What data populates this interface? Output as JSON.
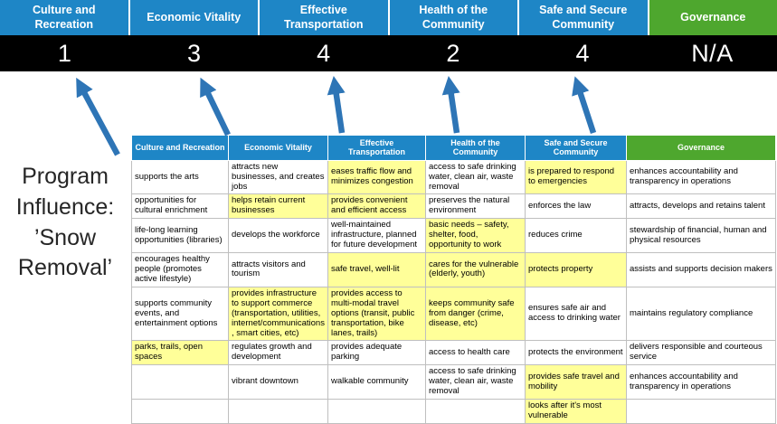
{
  "title": "Program Influence: ’Snow Removal’",
  "colors": {
    "pillar_blue": "#1e86c6",
    "governance_green": "#4ea72e",
    "highlight_yellow": "#ffff99",
    "score_bar_bg": "#000000",
    "arrow_blue": "#2e75b6",
    "grid_border": "#bfbfbf"
  },
  "pillars": [
    {
      "label": "Culture and Recreation",
      "score": "1",
      "theme": "blue"
    },
    {
      "label": "Economic Vitality",
      "score": "3",
      "theme": "blue"
    },
    {
      "label": "Effective Transportation",
      "score": "4",
      "theme": "blue"
    },
    {
      "label": "Health of the Community",
      "score": "2",
      "theme": "blue"
    },
    {
      "label": "Safe and Secure Community",
      "score": "4",
      "theme": "blue"
    },
    {
      "label": "Governance",
      "score": "N/A",
      "theme": "green"
    }
  ],
  "matrix": {
    "headers": [
      {
        "label": "Culture and Recreation",
        "theme": "blue"
      },
      {
        "label": "Economic Vitality",
        "theme": "blue"
      },
      {
        "label": "Effective Transportation",
        "theme": "blue"
      },
      {
        "label": "Health of the Community",
        "theme": "blue"
      },
      {
        "label": "Safe and Secure Community",
        "theme": "blue"
      },
      {
        "label": "Governance",
        "theme": "green"
      }
    ],
    "rows": [
      [
        {
          "text": "supports the arts",
          "highlight": false
        },
        {
          "text": "attracts new businesses, and creates jobs",
          "highlight": false
        },
        {
          "text": "eases traffic flow and minimizes congestion",
          "highlight": true
        },
        {
          "text": "access to safe drinking water, clean air, waste removal",
          "highlight": false
        },
        {
          "text": "is prepared to respond to emergencies",
          "highlight": true
        },
        {
          "text": "enhances accountability and transparency in operations",
          "highlight": false
        }
      ],
      [
        {
          "text": "opportunities for cultural enrichment",
          "highlight": false
        },
        {
          "text": "helps retain current businesses",
          "highlight": true
        },
        {
          "text": "provides convenient and efficient access",
          "highlight": true
        },
        {
          "text": "preserves the natural environment",
          "highlight": false
        },
        {
          "text": "enforces the law",
          "highlight": false
        },
        {
          "text": "attracts, develops and retains talent",
          "highlight": false
        }
      ],
      [
        {
          "text": "life-long learning opportunities (libraries)",
          "highlight": false
        },
        {
          "text": "develops the workforce",
          "highlight": false
        },
        {
          "text": "well-maintained infrastructure, planned for future development",
          "highlight": false
        },
        {
          "text": "basic needs – safety, shelter, food, opportunity to work",
          "highlight": true
        },
        {
          "text": "reduces crime",
          "highlight": false
        },
        {
          "text": "stewardship of financial, human and physical resources",
          "highlight": false
        }
      ],
      [
        {
          "text": "encourages healthy people (promotes active lifestyle)",
          "highlight": false
        },
        {
          "text": "attracts visitors and tourism",
          "highlight": false
        },
        {
          "text": "safe travel, well-lit",
          "highlight": true
        },
        {
          "text": "cares for the vulnerable (elderly, youth)",
          "highlight": true
        },
        {
          "text": "protects property",
          "highlight": true
        },
        {
          "text": "assists and supports decision makers",
          "highlight": false
        }
      ],
      [
        {
          "text": "supports community events, and entertainment options",
          "highlight": false
        },
        {
          "text": "provides infrastructure to support commerce (transportation, utilities, internet/communications, smart cities, etc)",
          "highlight": true
        },
        {
          "text": "provides access to multi-modal travel options (transit, public transportation, bike lanes, trails)",
          "highlight": true
        },
        {
          "text": "keeps community safe from danger (crime, disease, etc)",
          "highlight": true
        },
        {
          "text": "ensures safe air and access to drinking water",
          "highlight": false
        },
        {
          "text": "maintains regulatory compliance",
          "highlight": false
        }
      ],
      [
        {
          "text": "parks, trails, open spaces",
          "highlight": true
        },
        {
          "text": "regulates growth and development",
          "highlight": false
        },
        {
          "text": "provides adequate parking",
          "highlight": false
        },
        {
          "text": "access to health care",
          "highlight": false
        },
        {
          "text": "protects the environment",
          "highlight": false
        },
        {
          "text": "delivers responsible and courteous service",
          "highlight": false
        }
      ],
      [
        {
          "text": "",
          "highlight": false
        },
        {
          "text": "vibrant downtown",
          "highlight": false
        },
        {
          "text": "walkable community",
          "highlight": false
        },
        {
          "text": "access to safe drinking water, clean air, waste removal",
          "highlight": false
        },
        {
          "text": "provides safe travel and mobility",
          "highlight": true
        },
        {
          "text": "enhances accountability and transparency in operations",
          "highlight": false
        }
      ],
      [
        {
          "text": "",
          "highlight": false
        },
        {
          "text": "",
          "highlight": false
        },
        {
          "text": "",
          "highlight": false
        },
        {
          "text": "",
          "highlight": false
        },
        {
          "text": "looks after it's most vulnerable",
          "highlight": true
        },
        {
          "text": "",
          "highlight": false
        }
      ]
    ]
  }
}
